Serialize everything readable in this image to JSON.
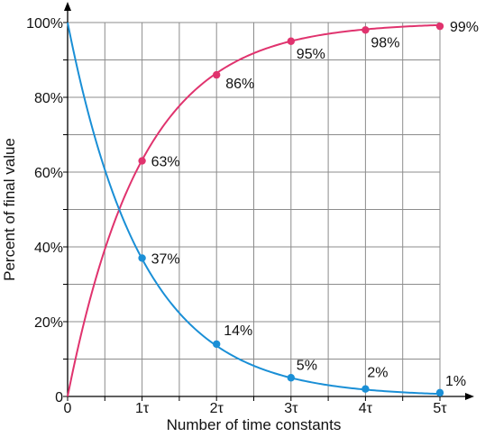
{
  "chart_data": {
    "type": "line",
    "xlabel": "Number of time constants",
    "ylabel": "Percent of final value",
    "xlim": [
      0,
      5
    ],
    "ylim": [
      0,
      100
    ],
    "grid": true,
    "x_ticks": [
      {
        "value": 0,
        "label": "0"
      },
      {
        "value": 0.5,
        "label": ""
      },
      {
        "value": 1,
        "label": "1τ"
      },
      {
        "value": 1.5,
        "label": ""
      },
      {
        "value": 2,
        "label": "2τ"
      },
      {
        "value": 2.5,
        "label": ""
      },
      {
        "value": 3,
        "label": "3τ"
      },
      {
        "value": 3.5,
        "label": ""
      },
      {
        "value": 4,
        "label": "4τ"
      },
      {
        "value": 4.5,
        "label": ""
      },
      {
        "value": 5,
        "label": "5τ"
      }
    ],
    "y_ticks": [
      {
        "value": 0,
        "label": "0"
      },
      {
        "value": 10,
        "label": ""
      },
      {
        "value": 20,
        "label": "20%"
      },
      {
        "value": 30,
        "label": ""
      },
      {
        "value": 40,
        "label": "40%"
      },
      {
        "value": 50,
        "label": ""
      },
      {
        "value": 60,
        "label": "60%"
      },
      {
        "value": 70,
        "label": ""
      },
      {
        "value": 80,
        "label": "80%"
      },
      {
        "value": 90,
        "label": ""
      },
      {
        "value": 100,
        "label": "100%"
      }
    ],
    "series": [
      {
        "key": "rise",
        "color": "#e0336e",
        "curve": "rise",
        "points": [
          {
            "x": 1,
            "y": 63,
            "label": "63%"
          },
          {
            "x": 2,
            "y": 86,
            "label": "86%"
          },
          {
            "x": 3,
            "y": 95,
            "label": "95%"
          },
          {
            "x": 4,
            "y": 98,
            "label": "98%"
          },
          {
            "x": 5,
            "y": 99,
            "label": "99%"
          }
        ]
      },
      {
        "key": "decay",
        "color": "#1a8fd6",
        "curve": "decay",
        "points": [
          {
            "x": 1,
            "y": 37,
            "label": "37%"
          },
          {
            "x": 2,
            "y": 14,
            "label": "14%"
          },
          {
            "x": 3,
            "y": 5,
            "label": "5%"
          },
          {
            "x": 4,
            "y": 2,
            "label": "2%"
          },
          {
            "x": 5,
            "y": 1,
            "label": "1%"
          }
        ]
      }
    ]
  }
}
